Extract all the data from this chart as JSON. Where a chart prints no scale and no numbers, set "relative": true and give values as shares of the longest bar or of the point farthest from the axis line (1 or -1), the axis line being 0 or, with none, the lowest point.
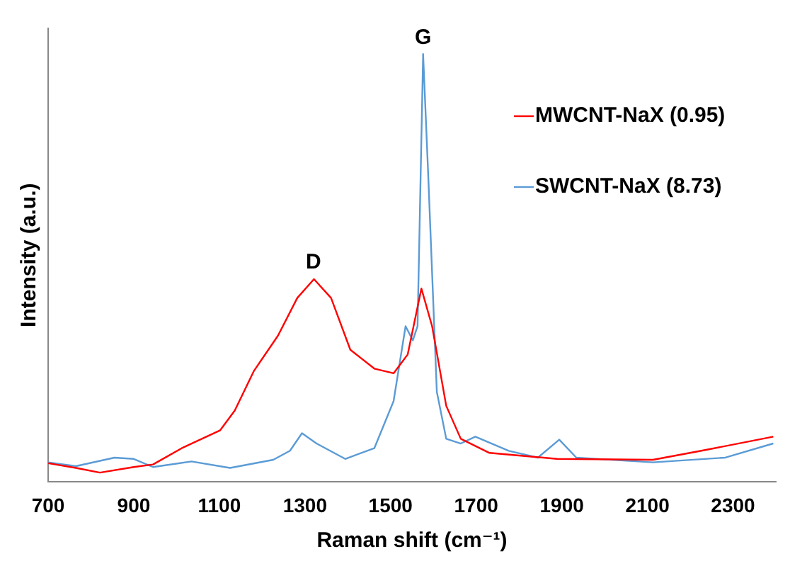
{
  "chart_data": {
    "type": "line",
    "relative": true,
    "xlabel": "Raman shift (cm⁻¹)",
    "ylabel": "Intensity (a.u.)",
    "xlim": [
      700,
      2400
    ],
    "xticks": [
      700,
      900,
      1100,
      1300,
      1500,
      1700,
      1900,
      2100,
      2300
    ],
    "legend": "top right",
    "grid": false,
    "marker": "none",
    "line_style": "solid",
    "annotations": [
      {
        "text": "D",
        "x": 1320,
        "y": 0.474
      },
      {
        "text": "G",
        "x": 1576,
        "y": 1.0
      }
    ],
    "series": [
      {
        "name": "MWCNT-NaX (0.95)",
        "color": "#ff0000",
        "x": [
          700,
          765,
          821,
          900,
          945,
          1012,
          1102,
          1136,
          1181,
          1237,
          1282,
          1321,
          1361,
          1406,
          1462,
          1507,
          1540,
          1572,
          1597,
          1630,
          1664,
          1731,
          1889,
          2113,
          2226,
          2394
        ],
        "values": [
          0.044,
          0.033,
          0.022,
          0.035,
          0.041,
          0.079,
          0.121,
          0.167,
          0.26,
          0.342,
          0.43,
          0.474,
          0.43,
          0.309,
          0.265,
          0.254,
          0.298,
          0.452,
          0.364,
          0.178,
          0.101,
          0.068,
          0.054,
          0.052,
          0.073,
          0.106
        ]
      },
      {
        "name": "SWCNT-NaX (8.73)",
        "color": "#5b9bd5",
        "x": [
          700,
          765,
          855,
          900,
          945,
          1035,
          1125,
          1226,
          1265,
          1293,
          1327,
          1394,
          1462,
          1507,
          1535,
          1552,
          1563,
          1576,
          1588,
          1608,
          1630,
          1664,
          1698,
          1776,
          1844,
          1894,
          1934,
          2113,
          2282,
          2394
        ],
        "values": [
          0.046,
          0.037,
          0.057,
          0.054,
          0.035,
          0.048,
          0.033,
          0.052,
          0.073,
          0.114,
          0.09,
          0.054,
          0.079,
          0.189,
          0.364,
          0.331,
          0.364,
          1.0,
          0.715,
          0.211,
          0.101,
          0.09,
          0.106,
          0.073,
          0.057,
          0.099,
          0.057,
          0.046,
          0.057,
          0.09
        ]
      }
    ]
  }
}
